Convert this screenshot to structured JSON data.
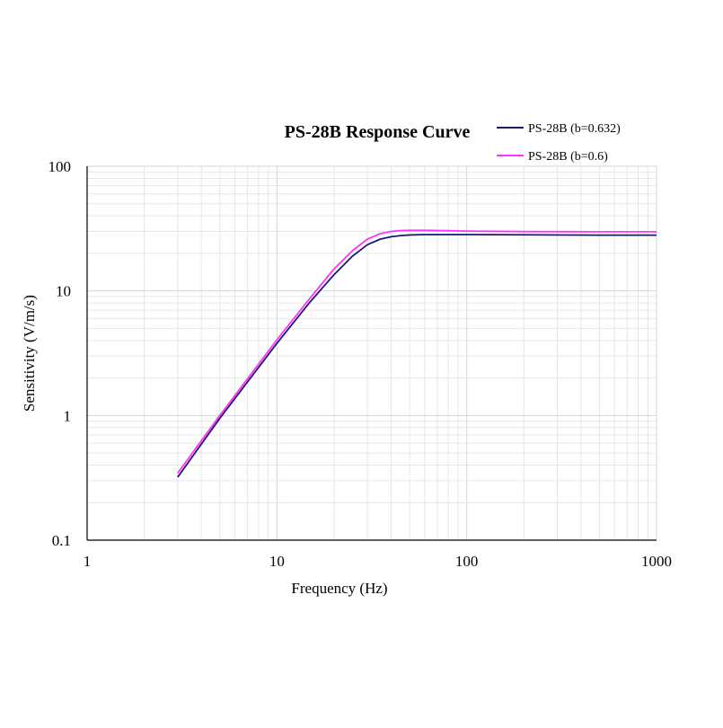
{
  "chart_data": {
    "type": "line",
    "title": "PS-28B Response Curve",
    "xlabel": "Frequency (Hz)",
    "ylabel": "Sensitivity  (V/m/s)",
    "xscale": "log",
    "yscale": "log",
    "xlim": [
      1,
      1000
    ],
    "ylim": [
      0.1,
      100
    ],
    "x_ticks": [
      "1",
      "10",
      "100",
      "1000"
    ],
    "y_ticks": [
      "0.1",
      "1",
      "10",
      "100"
    ],
    "grid": true,
    "legend_position": "top-right",
    "series": [
      {
        "name": "PS-28B (b=0.632)",
        "color": "#1a1a6e",
        "x": [
          3,
          5,
          10,
          15,
          20,
          25,
          30,
          35,
          40,
          45,
          50,
          60,
          80,
          100,
          200,
          500,
          1000
        ],
        "y": [
          0.32,
          0.95,
          3.8,
          8.2,
          13.5,
          19.0,
          23.5,
          26.0,
          27.2,
          27.8,
          28.1,
          28.3,
          28.3,
          28.3,
          28.2,
          28.0,
          28.0
        ]
      },
      {
        "name": "PS-28B (b=0.6)",
        "color": "#ff33ff",
        "x": [
          3,
          5,
          10,
          15,
          20,
          25,
          30,
          35,
          40,
          45,
          50,
          60,
          80,
          100,
          200,
          500,
          1000
        ],
        "y": [
          0.345,
          1.0,
          4.05,
          8.8,
          15.0,
          21.0,
          26.0,
          28.8,
          30.0,
          30.5,
          30.6,
          30.6,
          30.4,
          30.2,
          29.9,
          29.8,
          29.8
        ]
      }
    ]
  }
}
